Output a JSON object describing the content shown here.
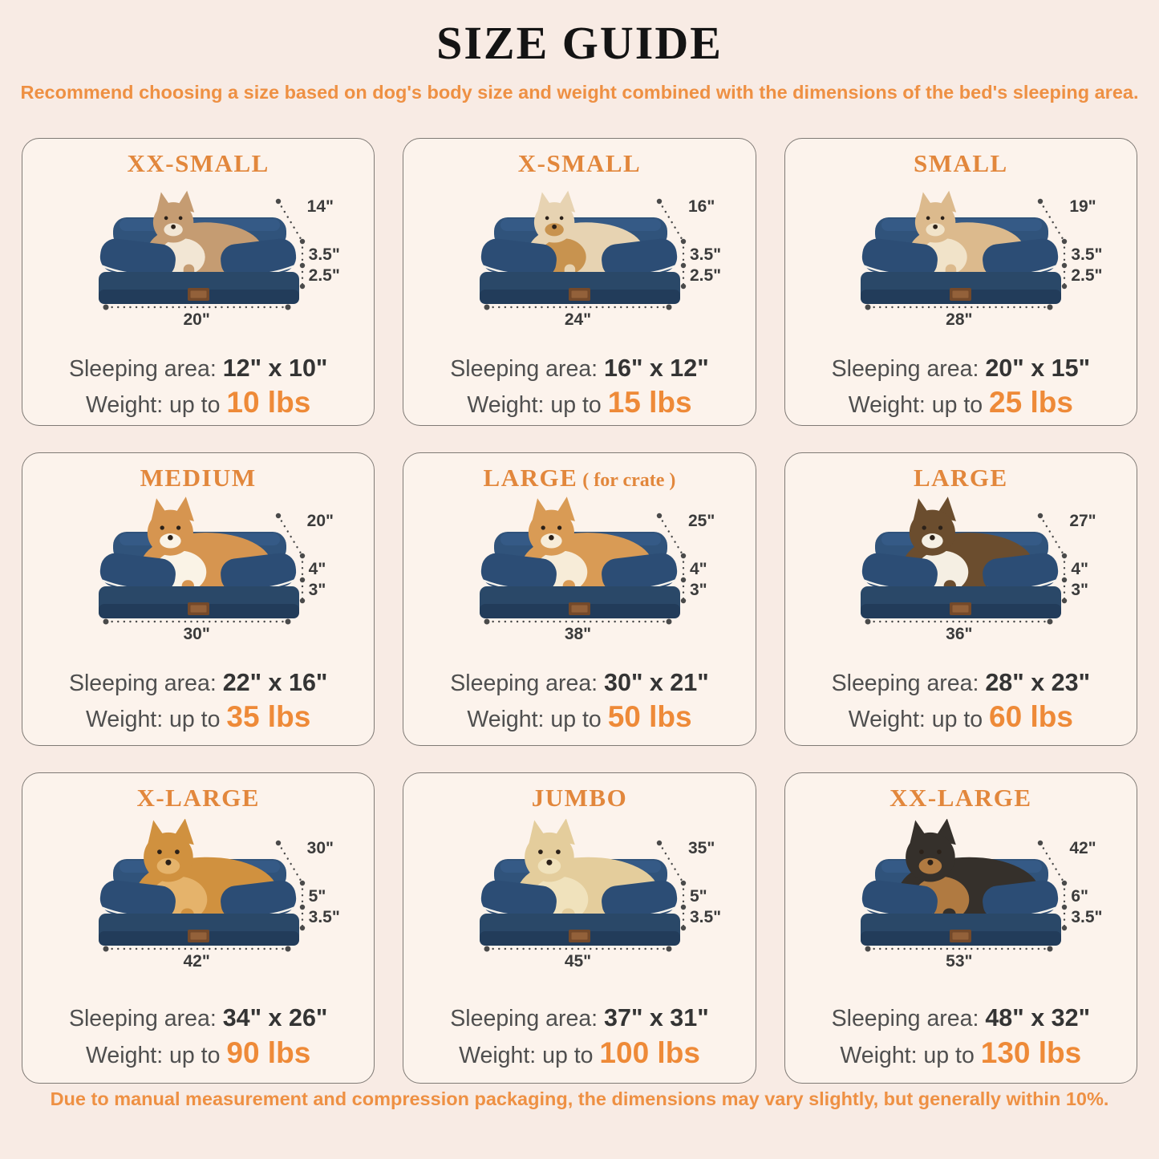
{
  "page": {
    "title": "SIZE GUIDE",
    "subtitle": "Recommend choosing a size based on dog's body size and weight combined with the dimensions of the bed's sleeping area.",
    "footer": "Due to manual measurement and compression packaging, the dimensions may vary slightly, but generally within 10%.",
    "sleeping_area_label": "Sleeping area:",
    "weight_label": "Weight: up to",
    "colors": {
      "background": "#f8ebe4",
      "card_background": "#fcf3ec",
      "card_border": "#7f7a75",
      "accent_orange": "#ee9043",
      "card_title_orange": "#e2873c",
      "weight_orange": "#ee8a38",
      "heading_black": "#141414",
      "text_gray": "#4f4f4f",
      "value_dark": "#343434",
      "dimension_gray": "#3b3b3b",
      "bed_navy": "#2c4d75",
      "bed_piping_white": "#f5f2ec"
    }
  },
  "cards": [
    {
      "size": "XX-SMALL",
      "note": "",
      "pet": "cat",
      "pet_colors": {
        "body": "#c59c72",
        "accent": "#f2e6d4"
      },
      "dims": {
        "back_height": "14\"",
        "bolster_height": "3.5\"",
        "base_height": "2.5\"",
        "width": "20\""
      },
      "sleeping_area": "12\" x 10\"",
      "weight": "10 lbs"
    },
    {
      "size": "X-SMALL",
      "note": "",
      "pet": "shih-tzu",
      "pet_colors": {
        "body": "#e7d3b2",
        "accent": "#c8934f"
      },
      "dims": {
        "back_height": "16\"",
        "bolster_height": "3.5\"",
        "base_height": "2.5\"",
        "width": "24\""
      },
      "sleeping_area": "16\" x 12\"",
      "weight": "15 lbs"
    },
    {
      "size": "SMALL",
      "note": "",
      "pet": "french-bulldog",
      "pet_colors": {
        "body": "#dcba8d",
        "accent": "#f1e3c9"
      },
      "dims": {
        "back_height": "19\"",
        "bolster_height": "3.5\"",
        "base_height": "2.5\"",
        "width": "28\""
      },
      "sleeping_area": "20\" x 15\"",
      "weight": "25 lbs"
    },
    {
      "size": "MEDIUM",
      "note": "",
      "pet": "corgi",
      "pet_colors": {
        "body": "#d69550",
        "accent": "#faf3e6"
      },
      "dims": {
        "back_height": "20\"",
        "bolster_height": "4\"",
        "base_height": "3\"",
        "width": "30\""
      },
      "sleeping_area": "22\" x 16\"",
      "weight": "35 lbs"
    },
    {
      "size": "LARGE",
      "note": " ( for crate )",
      "pet": "shiba-inu",
      "pet_colors": {
        "body": "#d99b55",
        "accent": "#f7ecd8"
      },
      "dims": {
        "back_height": "25\"",
        "bolster_height": "4\"",
        "base_height": "3\"",
        "width": "38\""
      },
      "sleeping_area": "30\" x 21\"",
      "weight": "50 lbs"
    },
    {
      "size": "LARGE",
      "note": "",
      "pet": "border-collie",
      "pet_colors": {
        "body": "#6b4d2e",
        "accent": "#f5efe3"
      },
      "dims": {
        "back_height": "27\"",
        "bolster_height": "4\"",
        "base_height": "3\"",
        "width": "36\""
      },
      "sleeping_area": "28\" x 23\"",
      "weight": "60 lbs"
    },
    {
      "size": "X-LARGE",
      "note": "",
      "pet": "golden-retriever",
      "pet_colors": {
        "body": "#d0913f",
        "accent": "#e5b36b"
      },
      "dims": {
        "back_height": "30\"",
        "bolster_height": "5\"",
        "base_height": "3.5\"",
        "width": "42\""
      },
      "sleeping_area": "34\" x 26\"",
      "weight": "90 lbs"
    },
    {
      "size": "JUMBO",
      "note": "",
      "pet": "labrador",
      "pet_colors": {
        "body": "#e4cd9c",
        "accent": "#f0e2bc"
      },
      "dims": {
        "back_height": "35\"",
        "bolster_height": "5\"",
        "base_height": "3.5\"",
        "width": "45\""
      },
      "sleeping_area": "37\" x 31\"",
      "weight": "100 lbs"
    },
    {
      "size": "XX-LARGE",
      "note": "",
      "pet": "rottweiler-and-chihuahua",
      "pet_colors": {
        "body": "#35302b",
        "accent": "#b07a41"
      },
      "dims": {
        "back_height": "42\"",
        "bolster_height": "6\"",
        "base_height": "3.5\"",
        "width": "53\""
      },
      "sleeping_area": "48\" x 32\"",
      "weight": "130 lbs"
    }
  ]
}
